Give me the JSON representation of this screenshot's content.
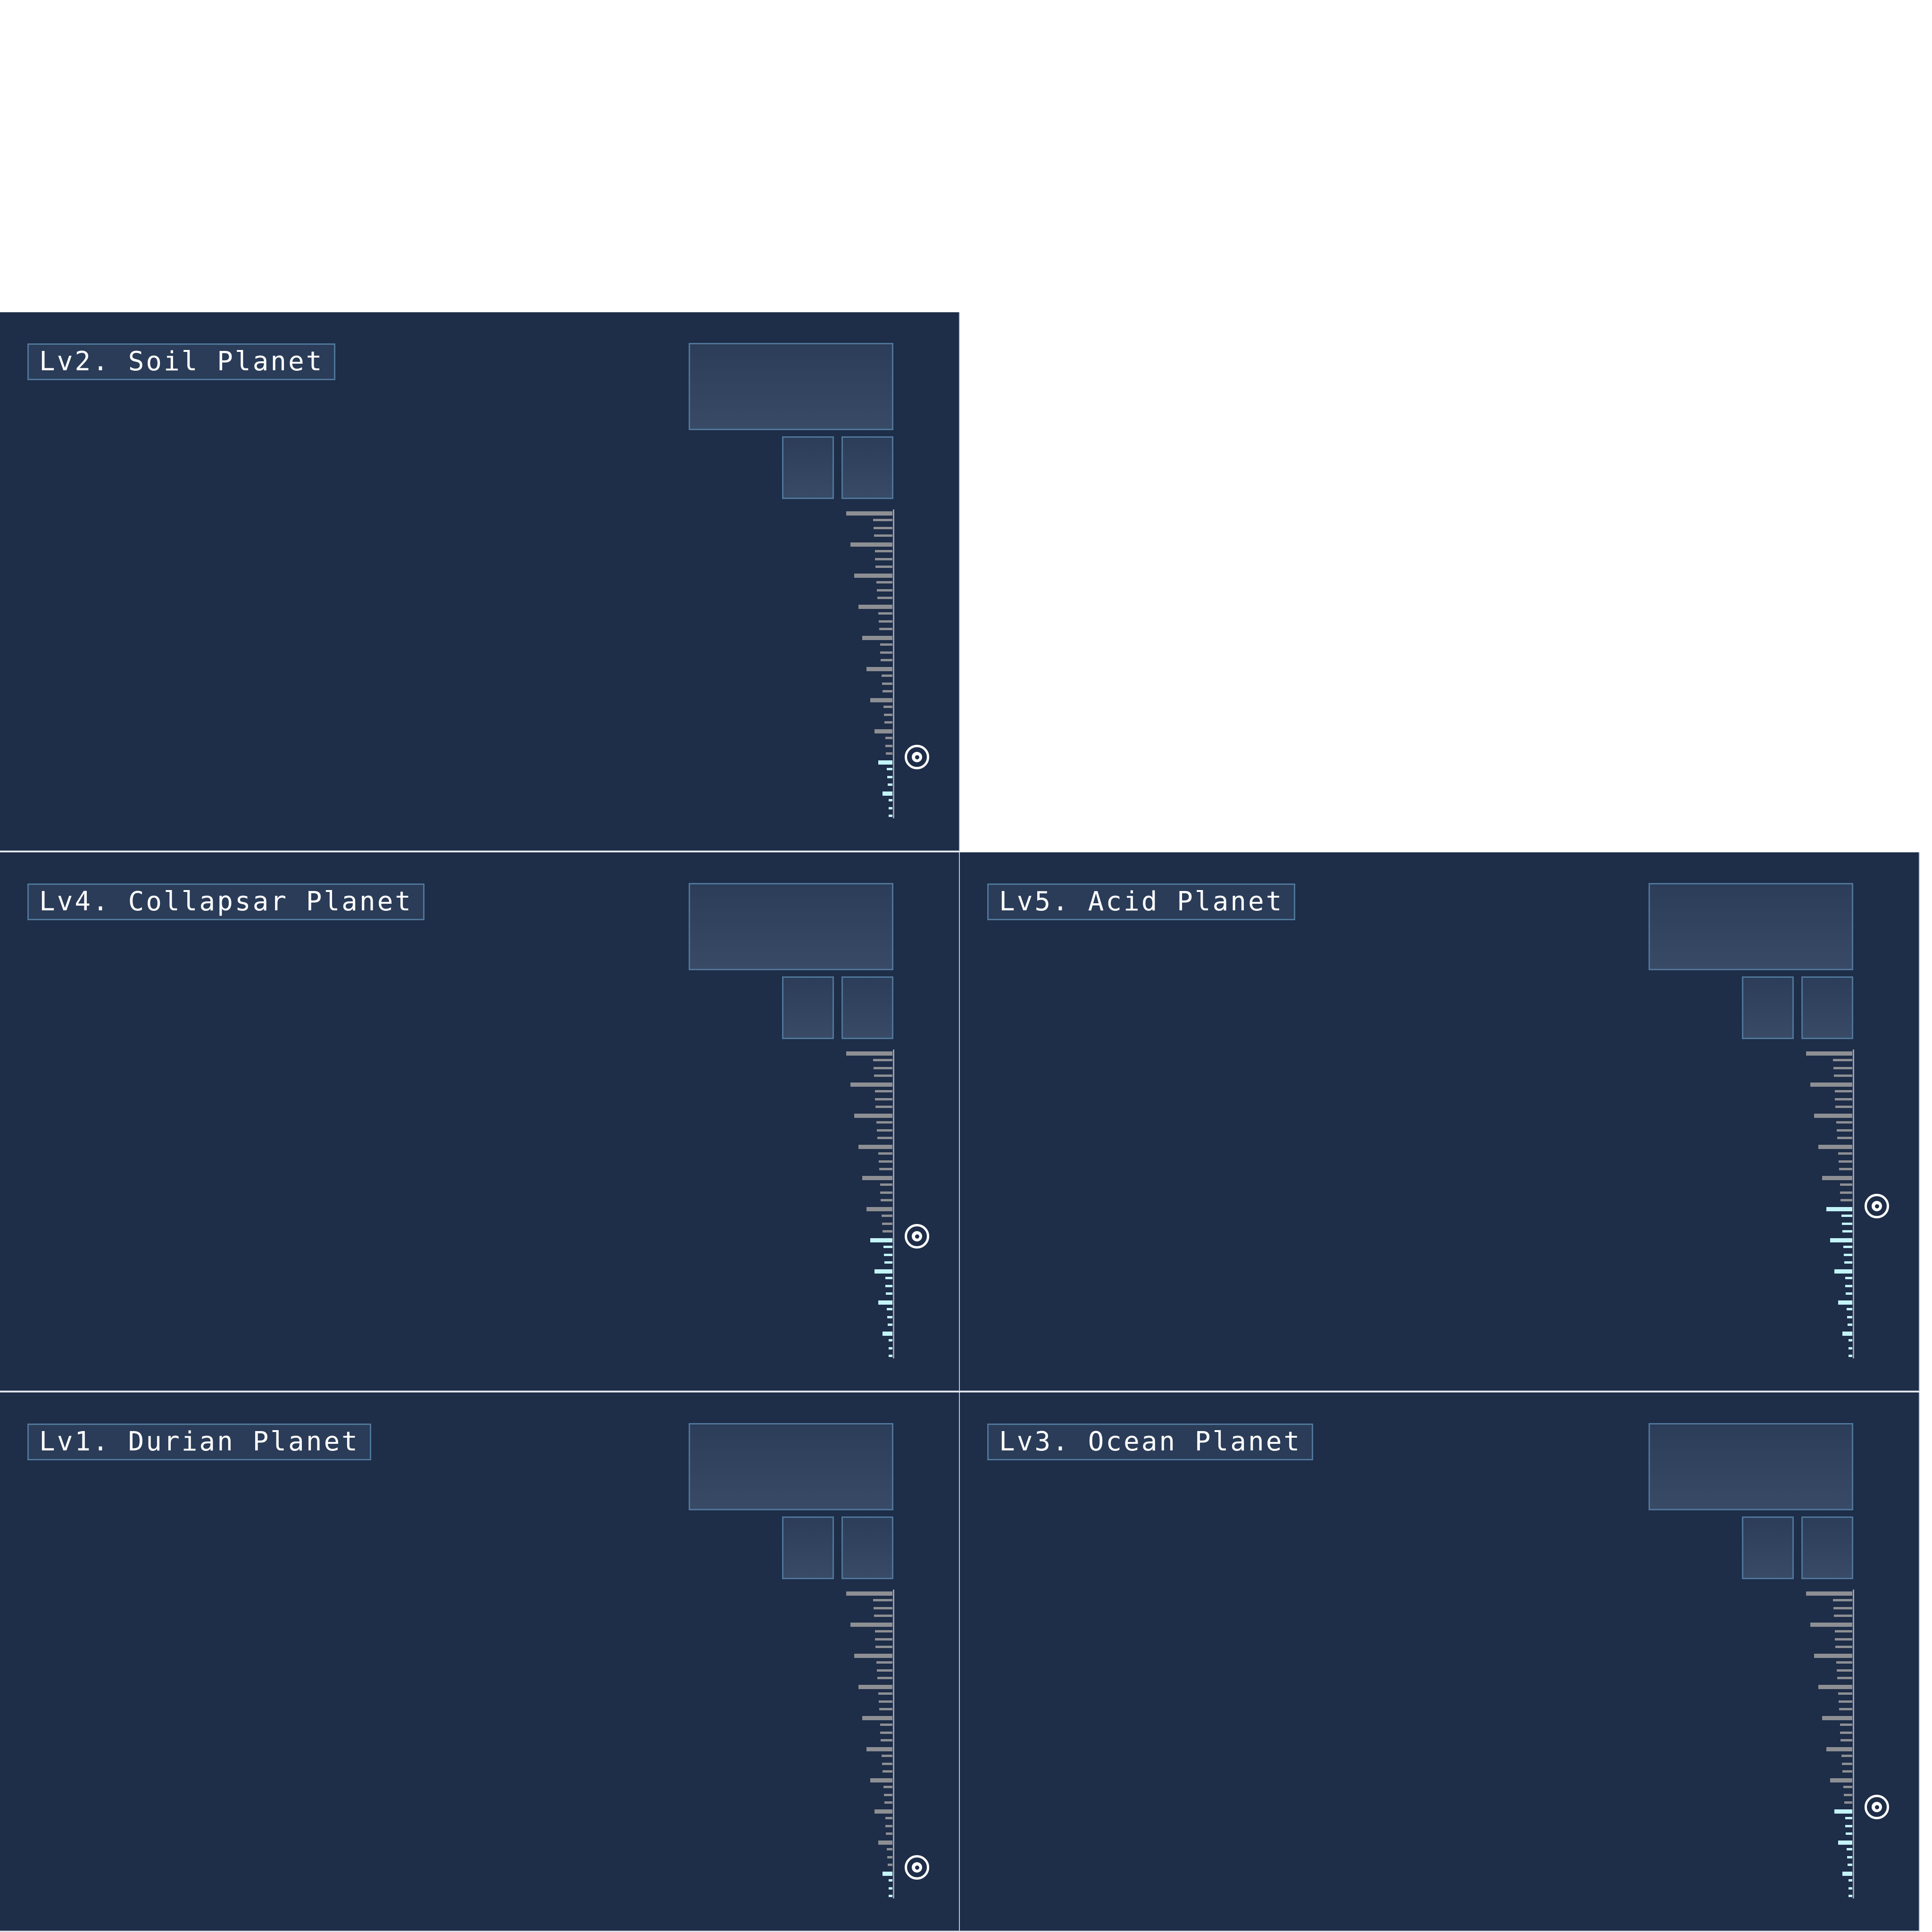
{
  "panels": [
    {
      "title": "Lv2. Soil Planet",
      "level_marker": 0.81
    },
    {
      "title": "Lv4. Collapsar Planet",
      "level_marker": 0.61
    },
    {
      "title": "Lv5. Acid Planet",
      "level_marker": 0.51
    },
    {
      "title": "Lv1. Durian Planet",
      "level_marker": 0.91
    },
    {
      "title": "Lv3. Ocean Planet",
      "level_marker": 0.71
    }
  ],
  "scale": {
    "tick_count": 40,
    "major_every": 4
  },
  "colors": {
    "panel_bg": "#1e2d48",
    "box_border": "#4f7699",
    "tick": "#8d8f93",
    "tick_active": "#c3f4fa",
    "text": "#ffffff"
  }
}
